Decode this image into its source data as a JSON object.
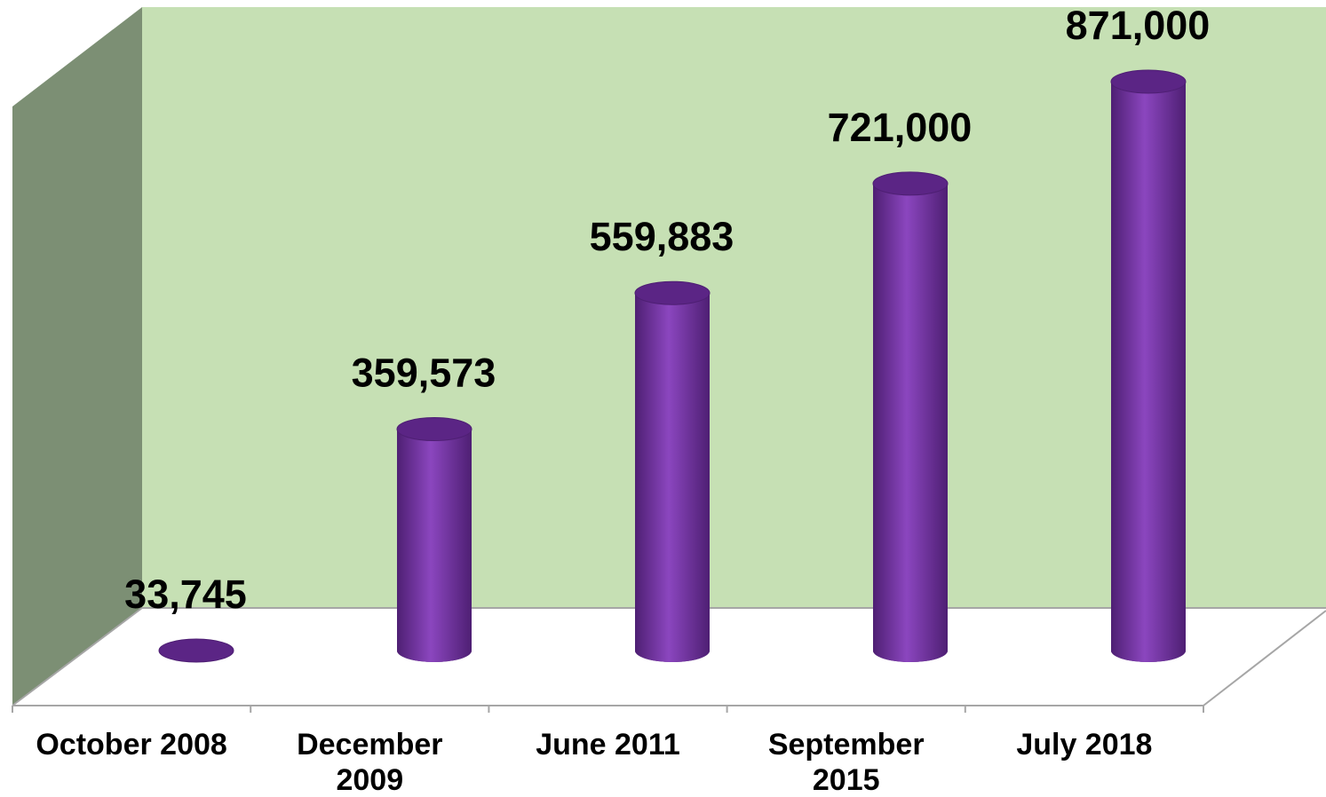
{
  "chart_data": {
    "type": "bar",
    "style": "3d-cylinder",
    "title": "",
    "xlabel": "",
    "ylabel": "",
    "ylim": [
      0,
      900000
    ],
    "grid": false,
    "legend": "none",
    "categories": [
      "October 2008",
      "December 2009",
      "June 2011",
      "September 2015",
      "July 2018"
    ],
    "category_lines": [
      [
        "October 2008"
      ],
      [
        "December",
        "2009"
      ],
      [
        "June 2011"
      ],
      [
        "September",
        "2015"
      ],
      [
        "July 2018"
      ]
    ],
    "values": [
      33745,
      359573,
      559883,
      721000,
      871000
    ],
    "value_labels": [
      "33,745",
      "359,573",
      "559,883",
      "721,000",
      "871,000"
    ]
  },
  "colors": {
    "back_wall": "#c6e0b4",
    "side_wall": "#7c8f74",
    "floor": "#ffffff",
    "edge": "#a6a6a6",
    "bar": "#7030a0",
    "bar_dark": "#4e1f73",
    "bar_light": "#8b46bf",
    "bar_top": "#5b2585",
    "text": "#000000"
  }
}
